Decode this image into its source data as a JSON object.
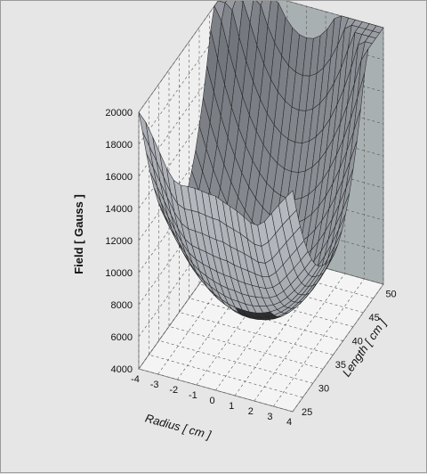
{
  "chart_data": {
    "type": "surface",
    "title": "",
    "zlabel": "Field [ Gauss ]",
    "xlabel": "Radius [ cm ]",
    "ylabel": "Length [ cm ]",
    "x_ticks": [
      "-4",
      "-3",
      "-2",
      "-1",
      "0",
      "1",
      "2",
      "3",
      "4"
    ],
    "y_ticks": [
      "25",
      "30",
      "35",
      "40",
      "45",
      "50"
    ],
    "z_ticks": [
      "4000",
      "6000",
      "8000",
      "10000",
      "12000",
      "14000",
      "16000",
      "18000",
      "20000"
    ],
    "xlim": [
      -4,
      4
    ],
    "ylim": [
      25,
      52
    ],
    "zlim": [
      4000,
      20000
    ],
    "grid": true,
    "surface_description": "Magnetic mirror field: minimum ~5000 G at center (r=0, L~38), rising to ~14000 G at front edge (L=25) and peaking ~20000 G at the far corners (r=±4, L=52)",
    "samples": [
      {
        "radius": 0,
        "length": 25,
        "field": 8500
      },
      {
        "radius": -4,
        "length": 25,
        "field": 14500
      },
      {
        "radius": 4,
        "length": 25,
        "field": 12500
      },
      {
        "radius": 0,
        "length": 38,
        "field": 5000
      },
      {
        "radius": 0,
        "length": 52,
        "field": 13000
      },
      {
        "radius": -4,
        "length": 52,
        "field": 20000
      },
      {
        "radius": 4,
        "length": 52,
        "field": 20000
      }
    ],
    "colors": {
      "background": "#e6e6e6",
      "back_wall": "#a8b0b2",
      "side_wall": "#efefef",
      "floor": "#f4f4f4",
      "surface": "#8e969a",
      "surface_highlight": "#c9cdcf",
      "grid_lines": "#555555",
      "dark_patch": "#2d2f30"
    }
  }
}
